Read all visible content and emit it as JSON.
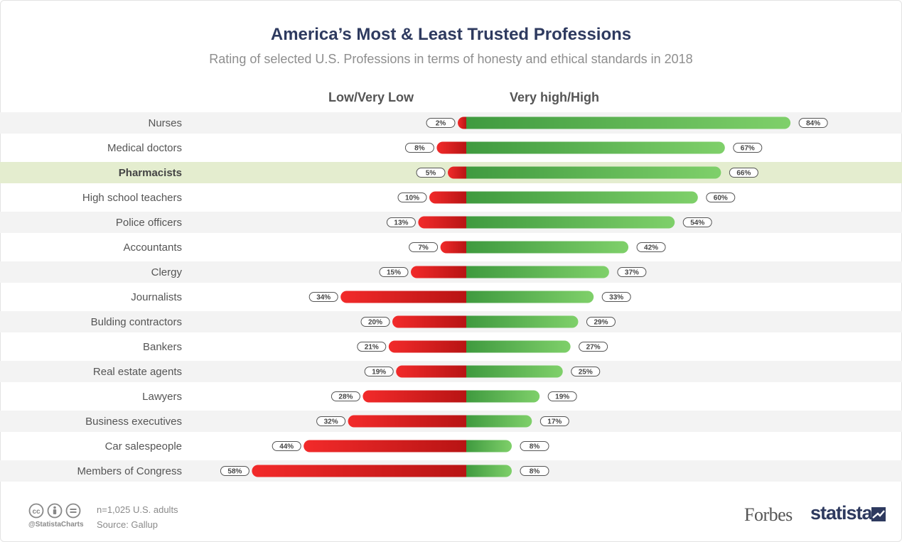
{
  "chart_data": {
    "type": "bar",
    "title": "America’s Most & Least Trusted Professions",
    "subtitle": "Rating of selected U.S. Professions in terms of honesty and ethical standards in 2018",
    "legend": {
      "low": "Low/Very Low",
      "high": "Very high/High"
    },
    "categories": [
      "Nurses",
      "Medical doctors",
      "Pharmacists",
      "High school teachers",
      "Police officers",
      "Accountants",
      "Clergy",
      "Journalists",
      "Bulding contractors",
      "Bankers",
      "Real estate agents",
      "Lawyers",
      "Business executives",
      "Car salespeople",
      "Members of Congress"
    ],
    "highlighted": "Pharmacists",
    "series": [
      {
        "name": "Low/Very Low",
        "values": [
          2,
          8,
          5,
          10,
          13,
          7,
          15,
          34,
          20,
          21,
          19,
          28,
          32,
          44,
          58
        ]
      },
      {
        "name": "Very high/High",
        "values": [
          84,
          67,
          66,
          60,
          54,
          42,
          37,
          33,
          29,
          27,
          25,
          19,
          17,
          8,
          8
        ]
      }
    ],
    "colors": {
      "low_dark": "#b81414",
      "low_light": "#f22a2a",
      "high_dark": "#3f9a3f",
      "high_light": "#7fd06a",
      "band": "#f3f3f3",
      "highlight_band": "#e4edcf"
    }
  },
  "footer": {
    "n": "n=1,025 U.S. adults",
    "source": "Source: Gallup",
    "handle": "@StatistaCharts",
    "brand1": "Forbes",
    "brand2": "statista"
  }
}
